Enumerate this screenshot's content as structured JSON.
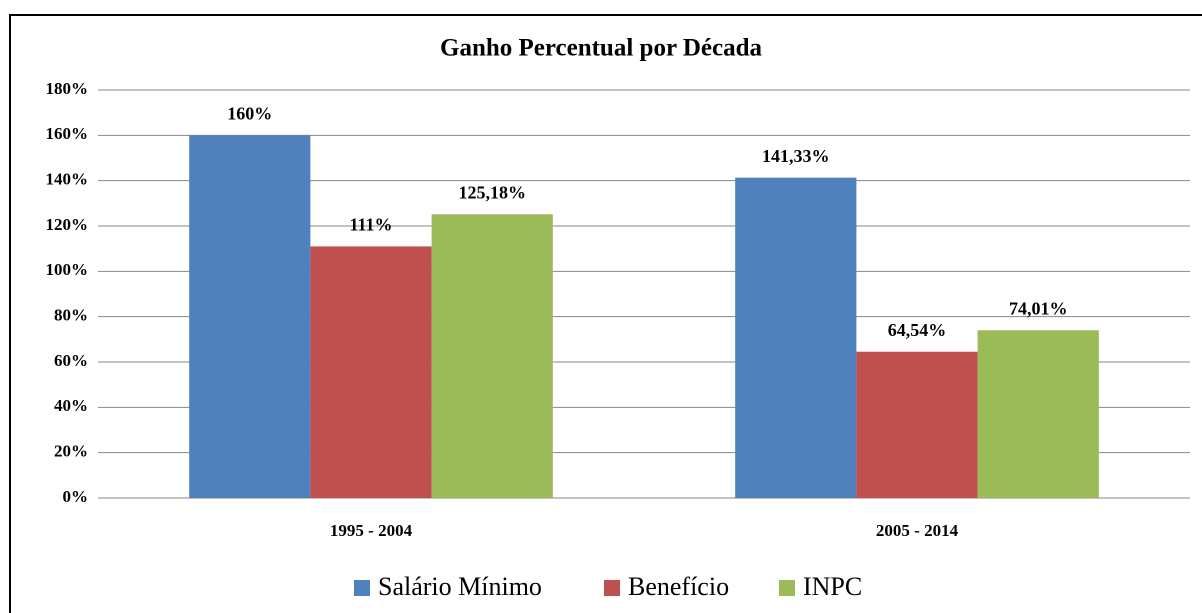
{
  "chart_data": {
    "type": "bar",
    "title": "Ganho Percentual por Década",
    "categories": [
      "1995 - 2004",
      "2005 - 2014"
    ],
    "series": [
      {
        "name": "Salário Mínimo",
        "color": "#4f81bd",
        "values": [
          160,
          141.33
        ],
        "value_labels": [
          "160%",
          "141,33%"
        ]
      },
      {
        "name": "Benefício",
        "color": "#c0504d",
        "values": [
          111,
          64.54
        ],
        "value_labels": [
          "111%",
          "64,54%"
        ]
      },
      {
        "name": "INPC",
        "color": "#9bbb59",
        "values": [
          125.18,
          74.01
        ],
        "value_labels": [
          "125,18%",
          "74,01%"
        ]
      }
    ],
    "ylim": [
      0,
      180
    ],
    "yticks": [
      {
        "value": 0,
        "label": "0%"
      },
      {
        "value": 20,
        "label": "20%"
      },
      {
        "value": 40,
        "label": "40%"
      },
      {
        "value": 60,
        "label": "60%"
      },
      {
        "value": 80,
        "label": "80%"
      },
      {
        "value": 100,
        "label": "100%"
      },
      {
        "value": 120,
        "label": "120%"
      },
      {
        "value": 140,
        "label": "140%"
      },
      {
        "value": 160,
        "label": "160%"
      },
      {
        "value": 180,
        "label": "180%"
      }
    ],
    "grid": true,
    "legend": "bottom"
  }
}
